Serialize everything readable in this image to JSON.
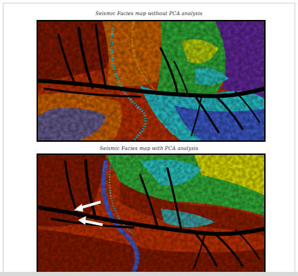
{
  "figure": {
    "top_caption": "Seismic Facies map without PCA analysis",
    "bottom_caption": "Seismic Facies map with PCA analysis"
  },
  "colors": {
    "dark_red": "#8b1a00",
    "red": "#c83200",
    "orange": "#e06a00",
    "yellow": "#e8e800",
    "green": "#33b83a",
    "cyan": "#2ad0d8",
    "blue": "#3f5fd8",
    "purple": "#6a2aa8",
    "channel": "#000000"
  }
}
